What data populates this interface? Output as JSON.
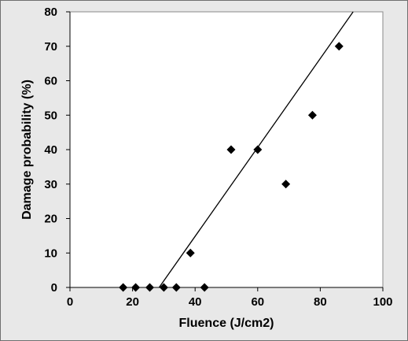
{
  "chart_data": {
    "type": "scatter",
    "title": "",
    "xlabel": "Fluence (J/cm2)",
    "ylabel": "Damage probability (%)",
    "xlim": [
      0,
      100
    ],
    "ylim": [
      0,
      80
    ],
    "x_ticks": [
      0,
      20,
      40,
      60,
      80,
      100
    ],
    "y_ticks": [
      0,
      10,
      20,
      30,
      40,
      50,
      60,
      70,
      80
    ],
    "grid": false,
    "legend": "none",
    "marker": "diamond",
    "colors": {
      "plot_background": "#ffffff",
      "chart_background": "#e8e8e8",
      "marker": "#000000",
      "trendline": "#000000"
    },
    "series": [
      {
        "points": [
          {
            "x": 17,
            "y": 0
          },
          {
            "x": 21,
            "y": 0
          },
          {
            "x": 25.5,
            "y": 0
          },
          {
            "x": 30,
            "y": 0
          },
          {
            "x": 34,
            "y": 0
          },
          {
            "x": 38.5,
            "y": 10
          },
          {
            "x": 43,
            "y": 0
          },
          {
            "x": 51.5,
            "y": 40
          },
          {
            "x": 60,
            "y": 40
          },
          {
            "x": 69,
            "y": 30
          },
          {
            "x": 77.5,
            "y": 50
          },
          {
            "x": 86,
            "y": 70
          }
        ]
      }
    ],
    "trendline": {
      "x_start": 28.5,
      "y_start": 0,
      "x_end": 90.5,
      "y_end": 80
    }
  }
}
